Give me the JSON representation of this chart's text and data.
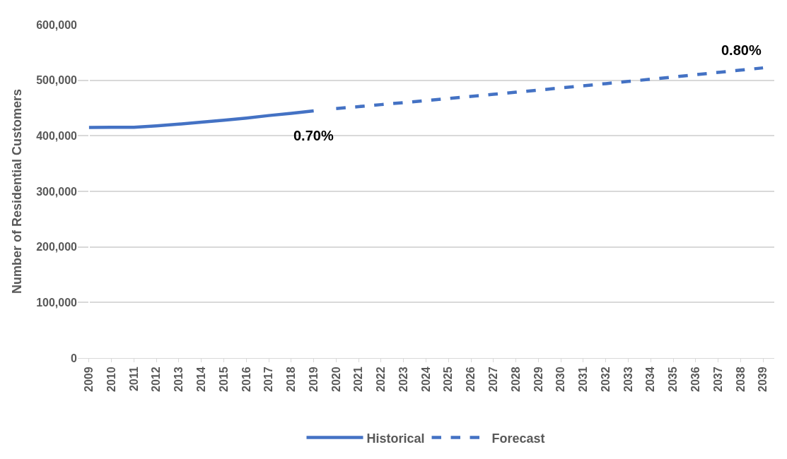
{
  "chart_data": {
    "type": "line",
    "ylabel": "Number of Residential Customers",
    "categories": [
      "2009",
      "2010",
      "2011",
      "2012",
      "2013",
      "2014",
      "2015",
      "2016",
      "2017",
      "2018",
      "2019",
      "2020",
      "2021",
      "2022",
      "2023",
      "2024",
      "2025",
      "2026",
      "2027",
      "2028",
      "2029",
      "2030",
      "2031",
      "2032",
      "2033",
      "2034",
      "2035",
      "2036",
      "2037",
      "2038",
      "2039"
    ],
    "series": [
      {
        "name": "Historical",
        "color": "#4472c4",
        "line_style": "solid",
        "values": [
          415000,
          415300,
          415500,
          418000,
          421000,
          424500,
          428000,
          432000,
          436500,
          440500,
          445000,
          null,
          null,
          null,
          null,
          null,
          null,
          null,
          null,
          null,
          null,
          null,
          null,
          null,
          null,
          null,
          null,
          null,
          null,
          null,
          null
        ]
      },
      {
        "name": "Forecast",
        "color": "#4472c4",
        "line_style": "dashed",
        "values": [
          null,
          null,
          null,
          null,
          null,
          null,
          null,
          null,
          null,
          null,
          null,
          449000,
          452600,
          456200,
          459800,
          463500,
          467200,
          470900,
          474700,
          478500,
          482300,
          486200,
          490100,
          494000,
          497900,
          501900,
          505900,
          510000,
          514100,
          518200,
          522300
        ]
      }
    ],
    "ylim": [
      0,
      600000
    ],
    "yticks": [
      {
        "value": 0,
        "label": "0"
      },
      {
        "value": 100000,
        "label": "100,000"
      },
      {
        "value": 200000,
        "label": "200,000"
      },
      {
        "value": 300000,
        "label": "300,000"
      },
      {
        "value": 400000,
        "label": "400,000"
      },
      {
        "value": 500000,
        "label": "500,000"
      },
      {
        "value": 600000,
        "label": "600,000"
      }
    ],
    "annotations": [
      {
        "text": "0.70%",
        "x": "2019",
        "y": 445000
      },
      {
        "text": "0.80%",
        "x": "2039",
        "y": 522300
      }
    ],
    "grid": "y",
    "legend": "bottom",
    "marker": "none"
  }
}
